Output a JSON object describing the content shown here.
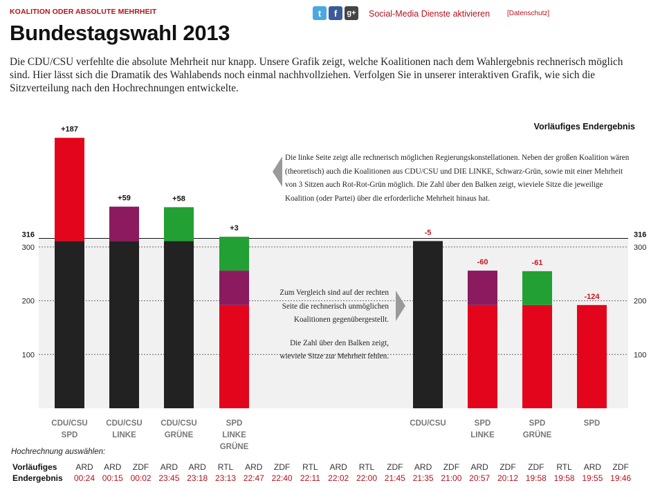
{
  "header": {
    "kicker": "KOALITION ODER ABSOLUTE MEHRHEIT",
    "title": "Bundestagswahl 2013",
    "intro": "Die CDU/CSU verfehlte die absolute Mehrheit nur knapp. Unsere Grafik zeigt, welche Koalitionen nach dem Wahlergebnis rechnerisch möglich sind. Hier lässt sich die Dramatik des Wahlabends noch einmal nachhvollziehen. Verfolgen Sie in unserer interaktiven Grafik, wie sich die Sitzverteilung nach den Hochrechnungen entwickelte."
  },
  "social": {
    "twitter_glyph": "t",
    "facebook_glyph": "f",
    "googleplus_glyph": "g+",
    "activate_label": "Social-Media Dienste aktivieren",
    "privacy_label": "[Datenschutz]"
  },
  "stage_label": "Vorläufiges Endergebnis",
  "notes": {
    "left": "Die linke Seite zeigt alle rechnerisch möglichen Regierungskonstellationen. Neben der großen Koalition wären (theoretisch) auch die Koalitionen aus CDU/CSU und DIE LINKE, Schwarz-Grün, sowie mit einer Mehrheit von 3 Sitzen auch Rot-Rot-Grün möglich. Die Zahl über den Balken zeigt, wieviele Sitze die jeweilige Koalition (oder Partei) über die erforderliche Mehrheit hinaus hat.",
    "right_1": "Zum Vergleich sind auf der rechten Seite die rechnerisch unmöglichen Koalitionen gegenübergestellt.",
    "right_2": "Die Zahl über den Balken zeigt, wieviele Sitze zur Mehrheit fehlen."
  },
  "colors": {
    "CDU/CSU": "#222222",
    "SPD": "#e3051b",
    "LINKE": "#8b1a5e",
    "GRÜNE": "#22a033",
    "positive": "#111111",
    "negative": "#c8141e",
    "shade": "#f1f1f1"
  },
  "chart_data": {
    "type": "bar",
    "stacked": true,
    "majority_line": 316,
    "ylim": [
      0,
      320
    ],
    "yticks": [
      100,
      200,
      300
    ],
    "grid": true,
    "coalitions": [
      {
        "label": [
          "CDU/CSU",
          "SPD"
        ],
        "diff": "+187",
        "segments": [
          {
            "party": "CDU/CSU",
            "value": 311
          },
          {
            "party": "SPD",
            "value": 192
          }
        ]
      },
      {
        "label": [
          "CDU/CSU",
          "LINKE"
        ],
        "diff": "+59",
        "segments": [
          {
            "party": "CDU/CSU",
            "value": 311
          },
          {
            "party": "LINKE",
            "value": 64
          }
        ]
      },
      {
        "label": [
          "CDU/CSU",
          "GRÜNE"
        ],
        "diff": "+58",
        "segments": [
          {
            "party": "CDU/CSU",
            "value": 311
          },
          {
            "party": "GRÜNE",
            "value": 63
          }
        ]
      },
      {
        "label": [
          "SPD",
          "LINKE",
          "GRÜNE"
        ],
        "diff": "+3",
        "segments": [
          {
            "party": "SPD",
            "value": 192
          },
          {
            "party": "LINKE",
            "value": 64
          },
          {
            "party": "GRÜNE",
            "value": 63
          }
        ]
      },
      {
        "label": [
          "CDU/CSU"
        ],
        "diff": "-5",
        "segments": [
          {
            "party": "CDU/CSU",
            "value": 311
          }
        ]
      },
      {
        "label": [
          "SPD",
          "LINKE"
        ],
        "diff": "-60",
        "segments": [
          {
            "party": "SPD",
            "value": 192
          },
          {
            "party": "LINKE",
            "value": 64
          }
        ]
      },
      {
        "label": [
          "SPD",
          "GRÜNE"
        ],
        "diff": "-61",
        "segments": [
          {
            "party": "SPD",
            "value": 192
          },
          {
            "party": "GRÜNE",
            "value": 63
          }
        ]
      },
      {
        "label": [
          "SPD"
        ],
        "diff": "-124",
        "segments": [
          {
            "party": "SPD",
            "value": 192
          }
        ]
      }
    ]
  },
  "projections": {
    "select_label": "Hochrechnung auswählen:",
    "row_head": [
      "Vorläufiges",
      "Endergebnis"
    ],
    "items": [
      {
        "net": "ARD",
        "time": "00:24"
      },
      {
        "net": "ARD",
        "time": "00:15"
      },
      {
        "net": "ZDF",
        "time": "00:02"
      },
      {
        "net": "ARD",
        "time": "23:45"
      },
      {
        "net": "ARD",
        "time": "23:18"
      },
      {
        "net": "RTL",
        "time": "23:13"
      },
      {
        "net": "ARD",
        "time": "22:47"
      },
      {
        "net": "ZDF",
        "time": "22:40"
      },
      {
        "net": "RTL",
        "time": "22:11"
      },
      {
        "net": "ARD",
        "time": "22:02"
      },
      {
        "net": "RTL",
        "time": "22:00"
      },
      {
        "net": "ZDF",
        "time": "21:45"
      },
      {
        "net": "ARD",
        "time": "21:35"
      },
      {
        "net": "ZDF",
        "time": "21:00"
      },
      {
        "net": "ARD",
        "time": "20:57"
      },
      {
        "net": "ZDF",
        "time": "20:12"
      },
      {
        "net": "ZDF",
        "time": "19:58"
      },
      {
        "net": "RTL",
        "time": "19:58"
      },
      {
        "net": "ARD",
        "time": "19:55"
      },
      {
        "net": "ZDF",
        "time": "19:46"
      }
    ]
  }
}
